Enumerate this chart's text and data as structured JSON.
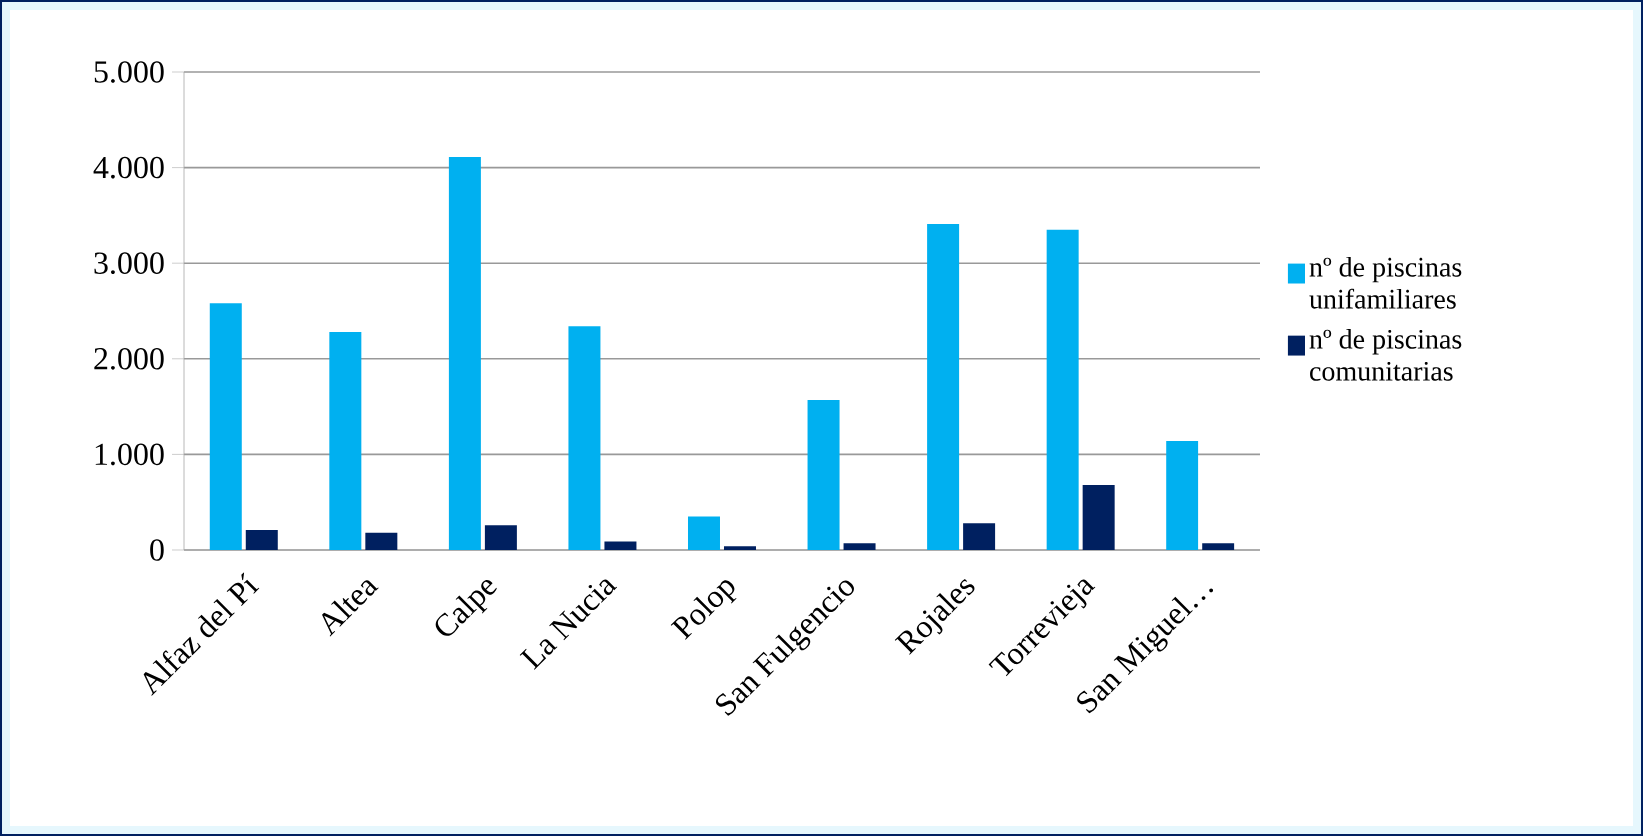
{
  "chart_data": {
    "type": "bar",
    "categories": [
      "Alfaz del Pí",
      "Altea",
      "Calpe",
      "La Nucia",
      "Polop",
      "San Fulgencio",
      "Rojales",
      "Torrevieja",
      "San Miguel…"
    ],
    "series": [
      {
        "name": "nº de piscinas unifamiliares",
        "color": "#00b0f0",
        "values": [
          2580,
          2280,
          4110,
          2340,
          350,
          1570,
          3410,
          3350,
          1140
        ]
      },
      {
        "name": "nº de piscinas comunitarias",
        "color": "#002060",
        "values": [
          210,
          180,
          260,
          90,
          40,
          70,
          280,
          680,
          70
        ]
      }
    ],
    "ylim": [
      0,
      5000
    ],
    "yticks": [
      {
        "value": 0,
        "label": "0"
      },
      {
        "value": 1000,
        "label": "1.000"
      },
      {
        "value": 2000,
        "label": "2.000"
      },
      {
        "value": 3000,
        "label": "3.000"
      },
      {
        "value": 4000,
        "label": "4.000"
      },
      {
        "value": 5000,
        "label": "5.000"
      }
    ],
    "grid": "y",
    "legend": "right"
  }
}
